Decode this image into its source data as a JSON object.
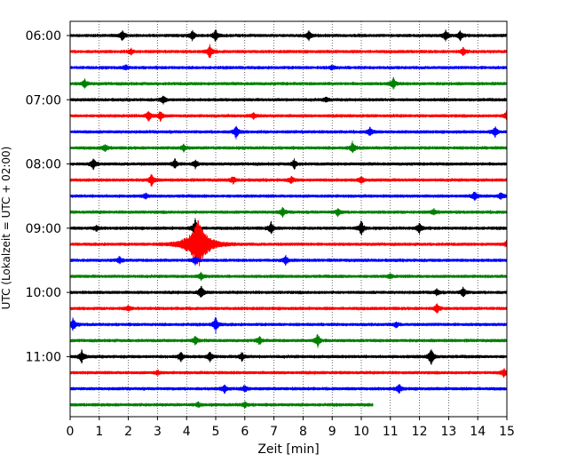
{
  "chart_data": {
    "type": "line",
    "title": "",
    "xlabel": "Zeit  [min]",
    "ylabel": "UTC (Lokalzeit = UTC + 02:00)",
    "xlim": [
      0,
      15
    ],
    "x_ticks": [
      "0",
      "1",
      "2",
      "3",
      "4",
      "5",
      "6",
      "7",
      "8",
      "9",
      "10",
      "11",
      "12",
      "13",
      "14",
      "15"
    ],
    "y_tick_labels": [
      "06:00",
      "07:00",
      "08:00",
      "09:00",
      "10:00",
      "11:00"
    ],
    "grid": "vertical dotted at each minute",
    "trace_interval_min": 15,
    "start_time": "06:00",
    "last_trace_end_min": 10.4,
    "color_cycle": [
      "#000000",
      "#ff0000",
      "#0000ff",
      "#008000"
    ],
    "traces": [
      {
        "time": "06:00",
        "color": "#000000",
        "events": [
          [
            1.8,
            1.0
          ],
          [
            4.2,
            0.9
          ],
          [
            5.0,
            1.1
          ],
          [
            8.2,
            0.8
          ],
          [
            12.9,
            1.0
          ],
          [
            13.4,
            0.8
          ]
        ]
      },
      {
        "time": "06:15",
        "color": "#ff0000",
        "events": [
          [
            4.8,
            1.4
          ],
          [
            13.5,
            0.7
          ],
          [
            2.1,
            0.5
          ]
        ]
      },
      {
        "time": "06:30",
        "color": "#0000ff",
        "events": [
          [
            1.9,
            0.4
          ],
          [
            9.0,
            0.4
          ]
        ]
      },
      {
        "time": "06:45",
        "color": "#008000",
        "events": [
          [
            0.5,
            0.8
          ],
          [
            11.1,
            1.1
          ]
        ]
      },
      {
        "time": "07:00",
        "color": "#000000",
        "events": [
          [
            3.2,
            0.7
          ],
          [
            8.8,
            0.4
          ]
        ]
      },
      {
        "time": "07:15",
        "color": "#ff0000",
        "events": [
          [
            2.7,
            1.0
          ],
          [
            3.1,
            0.9
          ],
          [
            6.3,
            0.5
          ],
          [
            15.0,
            1.0
          ]
        ]
      },
      {
        "time": "07:30",
        "color": "#0000ff",
        "events": [
          [
            5.7,
            1.2
          ],
          [
            10.3,
            0.8
          ],
          [
            14.6,
            0.9
          ]
        ]
      },
      {
        "time": "07:45",
        "color": "#008000",
        "events": [
          [
            1.2,
            0.6
          ],
          [
            3.9,
            0.6
          ],
          [
            9.7,
            1.1
          ]
        ]
      },
      {
        "time": "08:00",
        "color": "#000000",
        "events": [
          [
            0.8,
            1.0
          ],
          [
            3.6,
            0.9
          ],
          [
            4.3,
            0.7
          ],
          [
            7.7,
            0.9
          ]
        ]
      },
      {
        "time": "08:15",
        "color": "#ff0000",
        "events": [
          [
            2.8,
            1.3
          ],
          [
            5.6,
            0.6
          ],
          [
            7.6,
            0.7
          ],
          [
            10.0,
            0.6
          ]
        ]
      },
      {
        "time": "08:30",
        "color": "#0000ff",
        "events": [
          [
            2.6,
            0.4
          ],
          [
            13.9,
            0.8
          ],
          [
            14.8,
            0.6
          ]
        ]
      },
      {
        "time": "08:45",
        "color": "#008000",
        "events": [
          [
            7.3,
            0.8
          ],
          [
            9.2,
            0.7
          ],
          [
            12.5,
            0.5
          ]
        ]
      },
      {
        "time": "09:00",
        "color": "#000000",
        "events": [
          [
            4.3,
            1.8
          ],
          [
            6.9,
            1.1
          ],
          [
            10.0,
            1.4
          ],
          [
            12.0,
            1.0
          ],
          [
            0.9,
            0.5
          ]
        ]
      },
      {
        "time": "09:15",
        "color": "#ff0000",
        "events": [
          [
            4.4,
            4.4
          ],
          [
            15.0,
            0.6
          ]
        ]
      },
      {
        "time": "09:30",
        "color": "#0000ff",
        "events": [
          [
            1.7,
            0.6
          ],
          [
            7.4,
            0.9
          ],
          [
            4.3,
            0.8
          ]
        ]
      },
      {
        "time": "09:45",
        "color": "#008000",
        "events": [
          [
            4.5,
            0.6
          ],
          [
            11.0,
            0.4
          ]
        ]
      },
      {
        "time": "10:00",
        "color": "#000000",
        "events": [
          [
            4.5,
            1.2
          ],
          [
            13.5,
            1.0
          ],
          [
            12.6,
            0.6
          ]
        ]
      },
      {
        "time": "10:15",
        "color": "#ff0000",
        "events": [
          [
            12.6,
            0.9
          ],
          [
            2.0,
            0.4
          ]
        ]
      },
      {
        "time": "10:30",
        "color": "#0000ff",
        "events": [
          [
            0.1,
            1.2
          ],
          [
            5.0,
            1.4
          ],
          [
            11.2,
            0.5
          ]
        ]
      },
      {
        "time": "10:45",
        "color": "#008000",
        "events": [
          [
            4.3,
            0.8
          ],
          [
            6.5,
            0.7
          ],
          [
            8.5,
            1.3
          ]
        ]
      },
      {
        "time": "11:00",
        "color": "#000000",
        "events": [
          [
            0.4,
            1.2
          ],
          [
            3.8,
            0.9
          ],
          [
            4.8,
            0.9
          ],
          [
            5.9,
            0.8
          ],
          [
            12.4,
            1.7
          ]
        ]
      },
      {
        "time": "11:15",
        "color": "#ff0000",
        "events": [
          [
            14.9,
            0.8
          ],
          [
            3.0,
            0.4
          ]
        ]
      },
      {
        "time": "11:30",
        "color": "#0000ff",
        "events": [
          [
            5.3,
            0.8
          ],
          [
            6.0,
            0.7
          ],
          [
            11.3,
            0.8
          ]
        ]
      },
      {
        "time": "11:45",
        "color": "#008000",
        "events": [
          [
            6.0,
            0.5
          ],
          [
            4.4,
            0.4
          ]
        ]
      }
    ]
  }
}
